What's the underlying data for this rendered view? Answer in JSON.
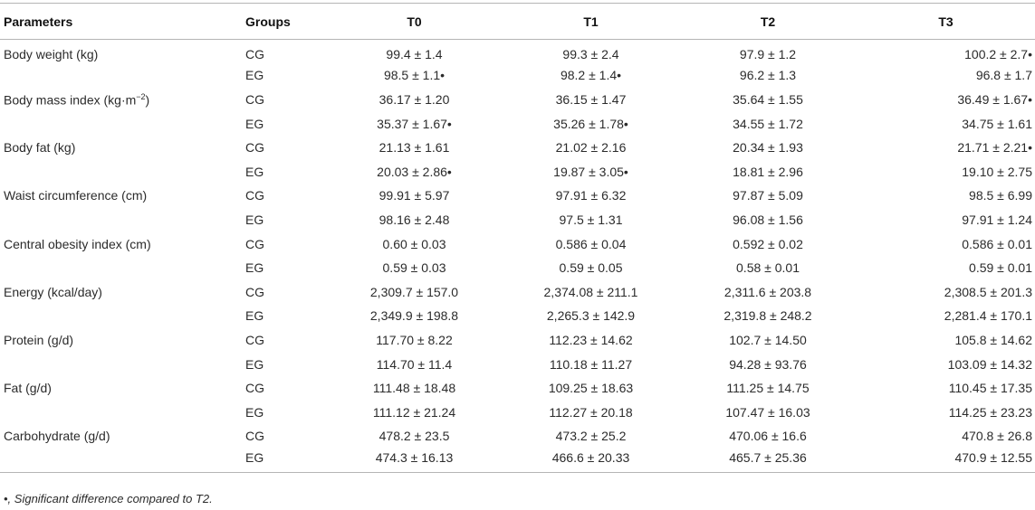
{
  "table": {
    "headers": [
      "Parameters",
      "Groups",
      "T0",
      "T1",
      "T2",
      "T3"
    ],
    "rows": [
      {
        "parameter": "Body weight (kg)",
        "group": "CG",
        "t0": "99.4 ± 1.4",
        "t1": "99.3 ± 2.4",
        "t2": "97.9 ± 1.2",
        "t3": "100.2 ± 2.7•"
      },
      {
        "parameter": "",
        "group": "EG",
        "t0": "98.5 ± 1.1•",
        "t1": "98.2 ± 1.4•",
        "t2": "96.2 ± 1.3",
        "t3": "96.8 ± 1.7"
      },
      {
        "parameter": "Body mass index (kg·m",
        "parameter_sup": "−2",
        "parameter_end": ")",
        "group": "CG",
        "t0": "36.17 ± 1.20",
        "t1": "36.15 ± 1.47",
        "t2": "35.64 ± 1.55",
        "t3": "36.49 ± 1.67•"
      },
      {
        "parameter": "",
        "group": "EG",
        "t0": "35.37 ± 1.67•",
        "t1": "35.26 ± 1.78•",
        "t2": "34.55 ± 1.72",
        "t3": "34.75 ± 1.61"
      },
      {
        "parameter": "Body fat (kg)",
        "group": "CG",
        "t0": "21.13 ± 1.61",
        "t1": "21.02 ± 2.16",
        "t2": "20.34 ± 1.93",
        "t3": "21.71 ± 2.21•"
      },
      {
        "parameter": "",
        "group": "EG",
        "t0": "20.03 ± 2.86•",
        "t1": "19.87 ± 3.05•",
        "t2": "18.81 ± 2.96",
        "t3": "19.10 ± 2.75"
      },
      {
        "parameter": "Waist circumference (cm)",
        "group": "CG",
        "t0": "99.91 ± 5.97",
        "t1": "97.91 ± 6.32",
        "t2": "97.87 ± 5.09",
        "t3": "98.5 ± 6.99"
      },
      {
        "parameter": "",
        "group": "EG",
        "t0": "98.16 ± 2.48",
        "t1": "97.5 ± 1.31",
        "t2": "96.08 ± 1.56",
        "t3": "97.91 ± 1.24"
      },
      {
        "parameter": "Central obesity index (cm)",
        "group": "CG",
        "t0": "0.60 ± 0.03",
        "t1": "0.586 ± 0.04",
        "t2": "0.592 ± 0.02",
        "t3": "0.586 ± 0.01"
      },
      {
        "parameter": "",
        "group": "EG",
        "t0": "0.59 ± 0.03",
        "t1": "0.59 ± 0.05",
        "t2": "0.58 ± 0.01",
        "t3": "0.59 ± 0.01"
      },
      {
        "parameter": "Energy (kcal/day)",
        "group": "CG",
        "t0": "2,309.7 ± 157.0",
        "t1": "2,374.08 ± 211.1",
        "t2": "2,311.6 ± 203.8",
        "t3": "2,308.5 ± 201.3"
      },
      {
        "parameter": "",
        "group": "EG",
        "t0": "2,349.9 ± 198.8",
        "t1": "2,265.3 ± 142.9",
        "t2": "2,319.8 ± 248.2",
        "t3": "2,281.4 ± 170.1"
      },
      {
        "parameter": "Protein (g/d)",
        "group": "CG",
        "t0": "117.70 ± 8.22",
        "t1": "112.23 ± 14.62",
        "t2": "102.7 ± 14.50",
        "t3": "105.8 ± 14.62"
      },
      {
        "parameter": "",
        "group": "EG",
        "t0": "114.70 ± 11.4",
        "t1": "110.18 ± 11.27",
        "t2": "94.28 ± 93.76",
        "t3": "103.09 ± 14.32"
      },
      {
        "parameter": "Fat (g/d)",
        "group": "CG",
        "t0": "111.48 ± 18.48",
        "t1": "109.25 ± 18.63",
        "t2": "111.25 ± 14.75",
        "t3": "110.45 ± 17.35"
      },
      {
        "parameter": "",
        "group": "EG",
        "t0": "111.12 ± 21.24",
        "t1": "112.27 ± 20.18",
        "t2": "107.47 ± 16.03",
        "t3": "114.25 ± 23.23"
      },
      {
        "parameter": "Carbohydrate (g/d)",
        "group": "CG",
        "t0": "478.2 ± 23.5",
        "t1": "473.2 ± 25.2",
        "t2": "470.06 ± 16.6",
        "t3": "470.8 ± 26.8"
      },
      {
        "parameter": "",
        "group": "EG",
        "t0": "474.3 ± 16.13",
        "t1": "466.6 ± 20.33",
        "t2": "465.7 ± 25.36",
        "t3": "470.9 ± 12.55"
      }
    ]
  },
  "footnote": "•, Significant difference compared to T2."
}
